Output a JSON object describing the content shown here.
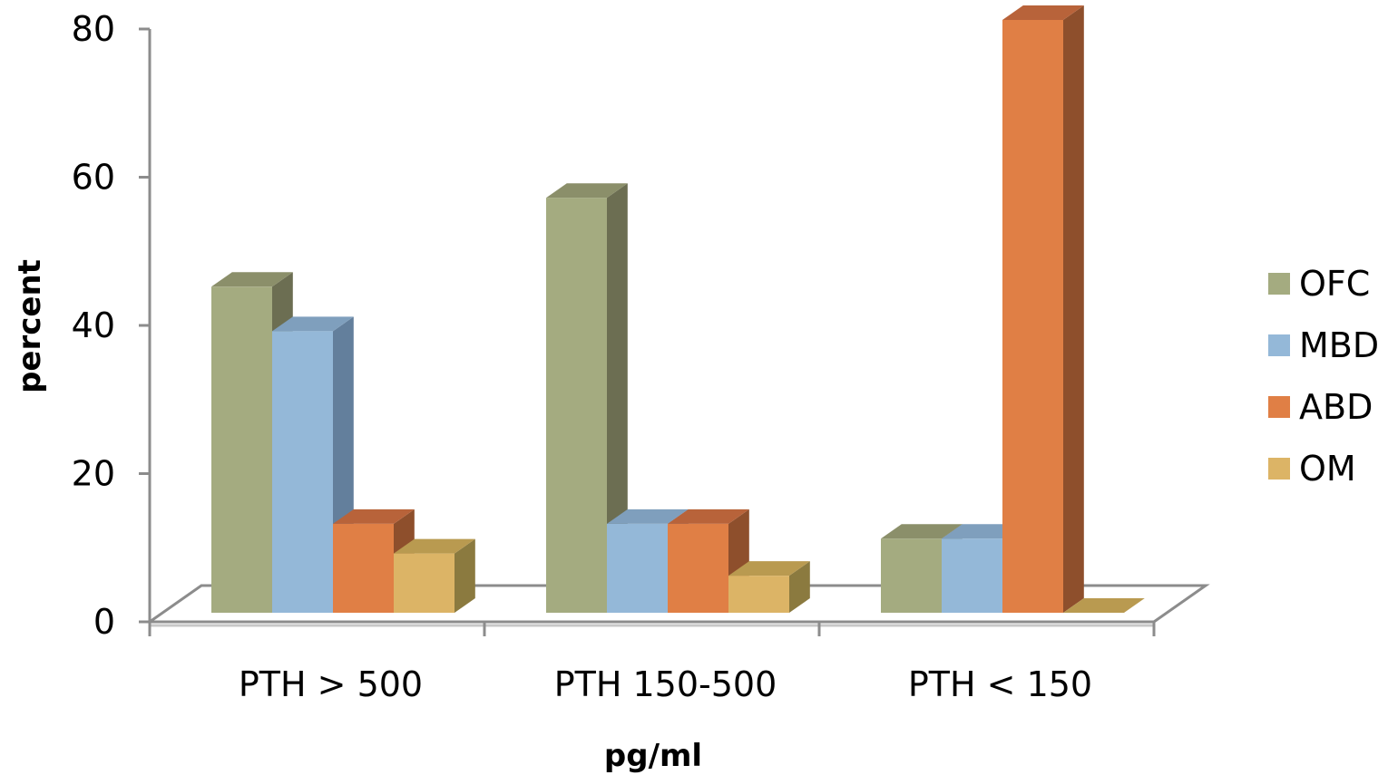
{
  "chart_data": {
    "type": "bar",
    "style": "3d-clustered-column",
    "categories": [
      "PTH > 500",
      "PTH 150-500",
      "PTH < 150"
    ],
    "series": [
      {
        "name": "OFC",
        "values": [
          44,
          56,
          10
        ],
        "color": "#a4ab80",
        "side_color": "#6c6e52",
        "top_color": "#8b8f6a"
      },
      {
        "name": "MBD",
        "values": [
          38,
          12,
          10
        ],
        "color": "#94b8d8",
        "side_color": "#637f9c",
        "top_color": "#7f9fbd"
      },
      {
        "name": "ABD",
        "values": [
          12,
          12,
          80
        ],
        "color": "#e07f45",
        "side_color": "#8e4f2c",
        "top_color": "#b8633a"
      },
      {
        "name": "OM",
        "values": [
          8,
          5,
          0
        ],
        "color": "#dcb466",
        "side_color": "#8b7a3f",
        "top_color": "#b99a50"
      }
    ],
    "ylim": [
      0,
      80
    ],
    "yticks": [
      "0",
      "20",
      "40",
      "60",
      "80"
    ],
    "ylabel": "percent",
    "xlabel": "pg/ml",
    "legend_position": "right",
    "grid": false
  }
}
